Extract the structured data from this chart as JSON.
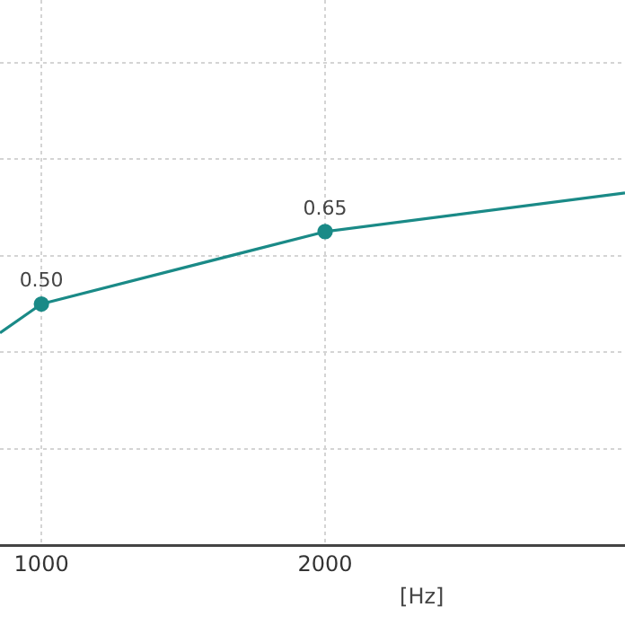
{
  "chart_data": {
    "type": "line",
    "xlabel": "[Hz]",
    "x": [
      854,
      1000,
      2000,
      3057
    ],
    "series": [
      {
        "color": "#1a8a87",
        "values": [
          0.44,
          0.5,
          0.65,
          0.73
        ],
        "value_labels": [
          null,
          "0.50",
          "0.65",
          null
        ]
      }
    ],
    "xlim": [
      854,
      3057
    ],
    "xticks": [
      1000,
      2000
    ],
    "ylim": [
      0,
      1.13
    ],
    "yticks": [
      {
        "value": 0.2,
        "label": null
      },
      {
        "value": 0.4,
        "label": null
      },
      {
        "value": 0.6,
        "label": null
      },
      {
        "value": 0.8,
        "label": null
      },
      {
        "value": 1.0,
        "label": null
      }
    ],
    "tick_labels": "x",
    "grid": true,
    "marker": "circle",
    "line_style": "solid",
    "legend": false
  }
}
